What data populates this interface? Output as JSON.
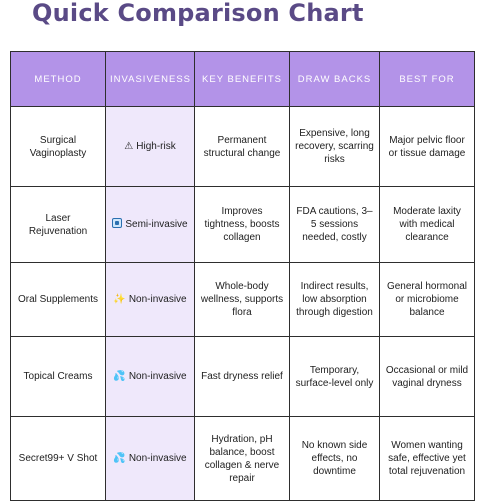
{
  "title": "Quick Comparison Chart",
  "headers": [
    "METHOD",
    "INVASIVENESS",
    "KEY BENEFITS",
    "DRAW BACKS",
    "BEST FOR"
  ],
  "rows": [
    {
      "method": "Surgical Vaginoplasty",
      "invasiveness_icon": "warning-icon",
      "invasiveness_glyph": "⚠",
      "invasiveness": "High-risk",
      "benefits": "Permanent structural change",
      "drawbacks": "Expensive, long recovery, scarring risks",
      "best_for": "Major pelvic floor or tissue damage"
    },
    {
      "method": "Laser Rejuvenation",
      "invasiveness_icon": "blue-square-icon",
      "invasiveness_glyph": "",
      "invasiveness": "Semi-invasive",
      "benefits": "Improves tightness, boosts collagen",
      "drawbacks": "FDA cautions, 3–5 sessions needed, costly",
      "best_for": "Moderate laxity with medical clearance"
    },
    {
      "method": "Oral Supplements",
      "invasiveness_icon": "sparkle-icon",
      "invasiveness_glyph": "✨",
      "invasiveness": "Non-invasive",
      "benefits": "Whole-body wellness, supports flora",
      "drawbacks": "Indirect results, low absorption through digestion",
      "best_for": "General hormonal or microbiome balance"
    },
    {
      "method": "Topical Creams",
      "invasiveness_icon": "droplets-icon",
      "invasiveness_glyph": "💦",
      "invasiveness": "Non-invasive",
      "benefits": "Fast dryness relief",
      "drawbacks": "Temporary, surface-level only",
      "best_for": "Occasional or mild vaginal dryness"
    },
    {
      "method": "Secret99+ V Shot",
      "invasiveness_icon": "droplets-icon",
      "invasiveness_glyph": "💦",
      "invasiveness": "Non-invasive",
      "benefits": "Hydration, pH balance, boost collagen & nerve repair",
      "drawbacks": "No known side effects, no downtime",
      "best_for": "Women wanting safe, effective yet total rejuvenation"
    }
  ]
}
